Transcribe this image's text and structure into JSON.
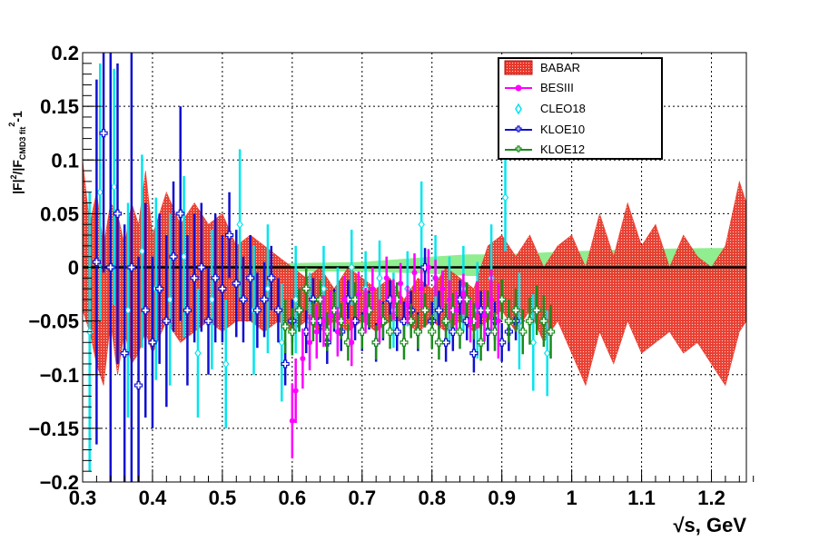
{
  "chart_data": {
    "type": "scatter",
    "title": "",
    "xlabel": "√s, GeV",
    "ylabel_main": "|F|",
    "ylabel_sup": "2",
    "ylabel_mid": "/|F",
    "ylabel_sub": "CMD3 fit",
    "ylabel_end_sup": "2",
    "ylabel_tail": "-1",
    "xlim": [
      0.3,
      1.25
    ],
    "ylim": [
      -0.2,
      0.2
    ],
    "grid": true,
    "x_ticks": [
      "0.3",
      "0.4",
      "0.5",
      "0.6",
      "0.7",
      "0.8",
      "0.9",
      "1",
      "1.1",
      "1.2"
    ],
    "x_tick_values": [
      0.3,
      0.4,
      0.5,
      0.6,
      0.7,
      0.8,
      0.9,
      1.0,
      1.1,
      1.2
    ],
    "y_ticks": [
      "−0.2",
      "−0.15",
      "−0.1",
      "−0.05",
      "0",
      "0.05",
      "0.1",
      "0.15",
      "0.2"
    ],
    "y_tick_values": [
      -0.2,
      -0.15,
      -0.1,
      -0.05,
      0,
      0.05,
      0.1,
      0.15,
      0.2
    ],
    "legend_position": "top-right",
    "colors": {
      "babar": "#e8382b",
      "besiii": "#ff00ff",
      "cleo18": "#00e5ee",
      "kloe10": "#1010d0",
      "kloe12": "#1a8c1a",
      "cmd3_band": "#90ee90",
      "zero_line": "#000000"
    },
    "cmd3_band": {
      "x": [
        0.3,
        0.5,
        0.6,
        0.7,
        0.8,
        0.85,
        0.9,
        1.0,
        1.1,
        1.2,
        1.25
      ],
      "lower": [
        -0.003,
        -0.003,
        -0.004,
        -0.004,
        -0.006,
        -0.008,
        -0.008,
        -0.01,
        -0.012,
        -0.013,
        -0.013
      ],
      "upper": [
        0.003,
        0.003,
        0.004,
        0.005,
        0.01,
        0.012,
        0.012,
        0.015,
        0.017,
        0.018,
        0.018
      ]
    },
    "series": [
      {
        "name": "BABAR",
        "kind": "band",
        "x": [
          0.3,
          0.31,
          0.32,
          0.33,
          0.34,
          0.35,
          0.36,
          0.37,
          0.38,
          0.39,
          0.4,
          0.42,
          0.44,
          0.46,
          0.48,
          0.5,
          0.52,
          0.54,
          0.56,
          0.58,
          0.6,
          0.62,
          0.64,
          0.66,
          0.68,
          0.7,
          0.72,
          0.74,
          0.76,
          0.78,
          0.8,
          0.82,
          0.84,
          0.86,
          0.88,
          0.9,
          0.92,
          0.94,
          0.96,
          0.98,
          1.0,
          1.02,
          1.04,
          1.06,
          1.08,
          1.1,
          1.12,
          1.14,
          1.16,
          1.18,
          1.2,
          1.22,
          1.24,
          1.25
        ],
        "lower": [
          -0.04,
          -0.06,
          -0.09,
          -0.11,
          -0.05,
          -0.1,
          -0.06,
          -0.09,
          -0.08,
          -0.06,
          -0.08,
          -0.05,
          -0.07,
          -0.06,
          -0.05,
          -0.06,
          -0.05,
          -0.05,
          -0.06,
          -0.05,
          -0.06,
          -0.05,
          -0.06,
          -0.05,
          -0.06,
          -0.05,
          -0.06,
          -0.05,
          -0.05,
          -0.06,
          -0.05,
          -0.06,
          -0.05,
          -0.06,
          -0.05,
          -0.04,
          -0.06,
          -0.04,
          -0.07,
          -0.05,
          -0.08,
          -0.11,
          -0.06,
          -0.09,
          -0.05,
          -0.08,
          -0.07,
          -0.06,
          -0.08,
          -0.07,
          -0.09,
          -0.11,
          -0.06,
          -0.05
        ],
        "upper": [
          0.1,
          0.04,
          0.07,
          0.02,
          0.06,
          0.05,
          0.02,
          0.06,
          0.04,
          0.09,
          0.03,
          0.07,
          0.04,
          0.06,
          0.04,
          0.05,
          0.02,
          0.03,
          0.02,
          0.01,
          0.0,
          -0.01,
          0.0,
          -0.02,
          0.0,
          -0.01,
          -0.02,
          -0.01,
          -0.03,
          -0.01,
          -0.02,
          0.0,
          -0.01,
          -0.02,
          0.02,
          0.03,
          0.01,
          0.03,
          0.0,
          0.02,
          0.03,
          0.0,
          0.05,
          0.01,
          0.06,
          0.02,
          0.04,
          0.0,
          0.03,
          0.01,
          0.0,
          0.02,
          0.08,
          0.06
        ]
      },
      {
        "name": "BESIII",
        "kind": "points",
        "x": [
          0.6,
          0.605,
          0.615,
          0.625,
          0.635,
          0.645,
          0.655,
          0.665,
          0.675,
          0.685,
          0.695,
          0.705,
          0.715,
          0.725,
          0.735,
          0.745,
          0.755,
          0.765,
          0.775,
          0.785,
          0.795,
          0.805,
          0.815,
          0.825,
          0.835,
          0.845,
          0.855,
          0.865,
          0.875,
          0.885,
          0.895
        ],
        "y": [
          -0.143,
          -0.115,
          -0.085,
          -0.07,
          -0.06,
          -0.05,
          -0.045,
          -0.06,
          -0.03,
          -0.07,
          -0.025,
          -0.04,
          -0.02,
          -0.05,
          -0.01,
          -0.03,
          -0.015,
          -0.035,
          -0.005,
          -0.02,
          0.0,
          -0.01,
          -0.02,
          -0.03,
          -0.04,
          -0.025,
          -0.05,
          -0.035,
          -0.045,
          -0.03,
          -0.05
        ],
        "err": [
          0.035,
          0.03,
          0.028,
          0.026,
          0.025,
          0.024,
          0.023,
          0.023,
          0.022,
          0.022,
          0.021,
          0.021,
          0.02,
          0.02,
          0.02,
          0.019,
          0.019,
          0.018,
          0.018,
          0.018,
          0.017,
          0.017,
          0.017,
          0.018,
          0.018,
          0.019,
          0.02,
          0.022,
          0.024,
          0.028,
          0.035
        ]
      },
      {
        "name": "CLEO18",
        "kind": "points",
        "x": [
          0.31,
          0.325,
          0.345,
          0.365,
          0.385,
          0.405,
          0.425,
          0.445,
          0.465,
          0.485,
          0.505,
          0.525,
          0.545,
          0.565,
          0.585,
          0.605,
          0.625,
          0.645,
          0.665,
          0.685,
          0.705,
          0.725,
          0.745,
          0.765,
          0.785,
          0.805,
          0.825,
          0.845,
          0.865,
          0.885,
          0.905,
          0.925,
          0.945,
          0.965
        ],
        "y": [
          -0.06,
          0.07,
          0.075,
          -0.04,
          0.015,
          -0.02,
          -0.03,
          0.01,
          -0.08,
          -0.03,
          -0.09,
          0.04,
          -0.04,
          -0.02,
          -0.07,
          -0.03,
          -0.05,
          -0.02,
          -0.04,
          0.0,
          -0.02,
          -0.01,
          -0.04,
          -0.02,
          0.04,
          -0.01,
          -0.03,
          -0.02,
          -0.04,
          -0.01,
          0.065,
          -0.05,
          -0.07,
          -0.08
        ],
        "err": [
          0.13,
          0.12,
          0.11,
          0.1,
          0.09,
          0.085,
          0.08,
          0.075,
          0.06,
          0.065,
          0.06,
          0.07,
          0.06,
          0.06,
          0.055,
          0.05,
          0.045,
          0.04,
          0.04,
          0.035,
          0.035,
          0.035,
          0.035,
          0.035,
          0.04,
          0.04,
          0.04,
          0.04,
          0.045,
          0.05,
          0.05,
          0.045,
          0.045,
          0.04
        ]
      },
      {
        "name": "KLOE10",
        "kind": "points",
        "x": [
          0.32,
          0.33,
          0.34,
          0.35,
          0.36,
          0.37,
          0.38,
          0.39,
          0.4,
          0.41,
          0.42,
          0.43,
          0.44,
          0.45,
          0.46,
          0.47,
          0.48,
          0.49,
          0.5,
          0.51,
          0.52,
          0.53,
          0.54,
          0.55,
          0.56,
          0.57,
          0.58,
          0.59,
          0.6,
          0.61,
          0.62,
          0.63,
          0.64,
          0.65,
          0.66,
          0.67,
          0.68,
          0.69,
          0.7,
          0.71,
          0.72,
          0.73,
          0.74,
          0.75,
          0.76,
          0.77,
          0.78,
          0.79,
          0.8,
          0.81,
          0.82,
          0.83,
          0.84,
          0.85,
          0.86,
          0.87,
          0.88,
          0.89,
          0.9,
          0.91,
          0.92
        ],
        "y": [
          0.005,
          0.125,
          0.0,
          0.05,
          -0.08,
          0.0,
          -0.11,
          -0.04,
          -0.07,
          -0.02,
          -0.05,
          0.01,
          0.05,
          -0.04,
          -0.01,
          0.0,
          -0.05,
          -0.01,
          -0.02,
          0.03,
          -0.015,
          -0.03,
          -0.01,
          -0.04,
          -0.03,
          -0.01,
          -0.04,
          -0.09,
          -0.05,
          -0.04,
          -0.06,
          -0.03,
          -0.05,
          -0.07,
          -0.04,
          -0.06,
          -0.03,
          -0.05,
          -0.06,
          -0.04,
          -0.07,
          -0.05,
          -0.03,
          -0.06,
          -0.05,
          -0.04,
          -0.06,
          0.0,
          -0.05,
          -0.04,
          -0.07,
          -0.06,
          -0.03,
          -0.05,
          -0.08,
          -0.04,
          -0.06,
          -0.05,
          -0.07,
          -0.06,
          -0.05
        ],
        "err": [
          0.17,
          0.13,
          0.2,
          0.14,
          0.12,
          0.2,
          0.12,
          0.1,
          0.08,
          0.07,
          0.08,
          0.07,
          0.1,
          0.07,
          0.06,
          0.06,
          0.05,
          0.06,
          0.05,
          0.04,
          0.05,
          0.04,
          0.04,
          0.035,
          0.035,
          0.03,
          0.03,
          0.02,
          0.02,
          0.02,
          0.02,
          0.02,
          0.02,
          0.02,
          0.02,
          0.018,
          0.018,
          0.018,
          0.018,
          0.018,
          0.018,
          0.018,
          0.018,
          0.018,
          0.018,
          0.018,
          0.018,
          0.018,
          0.018,
          0.018,
          0.018,
          0.018,
          0.018,
          0.018,
          0.018,
          0.018,
          0.018,
          0.018,
          0.018,
          0.018,
          0.018
        ]
      },
      {
        "name": "KLOE12",
        "kind": "points",
        "x": [
          0.59,
          0.6,
          0.61,
          0.62,
          0.63,
          0.64,
          0.65,
          0.66,
          0.67,
          0.68,
          0.69,
          0.7,
          0.71,
          0.72,
          0.73,
          0.74,
          0.75,
          0.76,
          0.77,
          0.78,
          0.79,
          0.8,
          0.81,
          0.82,
          0.83,
          0.84,
          0.85,
          0.86,
          0.87,
          0.88,
          0.89,
          0.9,
          0.91,
          0.92,
          0.93,
          0.94,
          0.95,
          0.96,
          0.97
        ],
        "y": [
          -0.055,
          -0.06,
          -0.04,
          -0.02,
          -0.05,
          -0.03,
          -0.06,
          -0.04,
          -0.05,
          -0.07,
          -0.03,
          -0.06,
          -0.04,
          -0.07,
          -0.05,
          -0.06,
          -0.03,
          -0.07,
          -0.05,
          -0.06,
          -0.04,
          -0.06,
          -0.07,
          -0.05,
          -0.04,
          -0.06,
          -0.03,
          -0.05,
          -0.07,
          -0.04,
          -0.06,
          -0.03,
          -0.05,
          -0.04,
          -0.06,
          -0.05,
          -0.04,
          -0.05,
          -0.06
        ],
        "err": [
          0.025,
          0.022,
          0.02,
          0.02,
          0.019,
          0.018,
          0.018,
          0.017,
          0.017,
          0.017,
          0.016,
          0.016,
          0.016,
          0.016,
          0.016,
          0.016,
          0.016,
          0.016,
          0.016,
          0.016,
          0.016,
          0.016,
          0.016,
          0.016,
          0.016,
          0.016,
          0.016,
          0.017,
          0.017,
          0.018,
          0.018,
          0.019,
          0.02,
          0.02,
          0.021,
          0.022,
          0.023,
          0.024,
          0.025
        ]
      }
    ]
  }
}
